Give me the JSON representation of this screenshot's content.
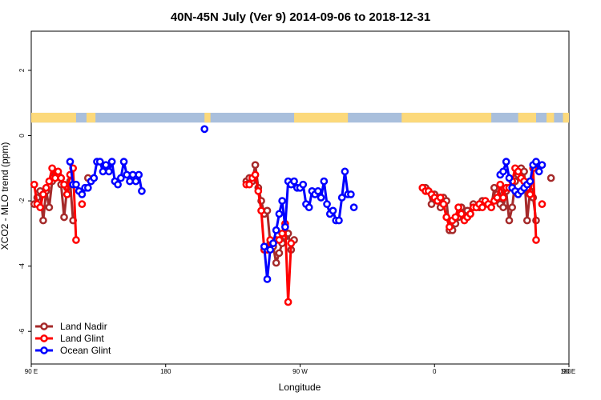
{
  "chart_data": {
    "type": "line",
    "title": "40N-45N July (Ver 9)   2014-09-06 to 2018-12-31",
    "xlabel": "Longitude",
    "ylabel": "XCO2 - MLO trend (ppm)",
    "xlim": [
      90,
      450
    ],
    "ylim": [
      -7,
      3.2
    ],
    "x_ticks": [
      {
        "value": 90,
        "label": "90 E"
      },
      {
        "value": 180,
        "label": "180"
      },
      {
        "value": 270,
        "label": "90 W"
      },
      {
        "value": 360,
        "label": "0"
      },
      {
        "value": 450,
        "label": "90 E"
      }
    ],
    "x_ticks_right": {
      "value": 450,
      "label": "180"
    },
    "y_ticks": [
      {
        "value": 2,
        "label": "2"
      },
      {
        "value": 0,
        "label": "0"
      },
      {
        "value": -2,
        "label": "-2"
      },
      {
        "value": -4,
        "label": "-4"
      },
      {
        "value": -6,
        "label": "-6"
      }
    ],
    "grid": false,
    "legend_position": "bottom-left",
    "land_ocean_strip": {
      "y_range": [
        0.4,
        0.7
      ],
      "land_color": "#fcd97b",
      "ocean_color": "#a9bfdc",
      "land_intervals_lon": [
        [
          90,
          120
        ],
        [
          127,
          133
        ],
        [
          206,
          210
        ],
        [
          266,
          302
        ],
        [
          338,
          398
        ],
        [
          416,
          428
        ],
        [
          435,
          440
        ],
        [
          446,
          450
        ]
      ]
    },
    "series": [
      {
        "name": "Land Nadir",
        "color": "#a52a2a",
        "points": [
          [
            92,
            -2.1
          ],
          [
            94,
            -1.9
          ],
          [
            96,
            -1.7
          ],
          [
            98,
            -2.6
          ],
          [
            100,
            -1.7
          ],
          [
            102,
            -2.2
          ],
          [
            104,
            -1.4
          ],
          [
            106,
            -1.2
          ],
          [
            108,
            -1.2
          ],
          [
            110,
            -1.5
          ],
          [
            112,
            -2.5
          ],
          [
            114,
            -1.6
          ],
          [
            116,
            -1.4
          ],
          [
            118,
            -2.6
          ],
          [
            null,
            null
          ],
          [
            128,
            -1.3
          ],
          [
            null,
            null
          ],
          [
            234,
            -1.4
          ],
          [
            236,
            -1.3
          ],
          [
            238,
            -1.4
          ],
          [
            240,
            -0.9
          ],
          [
            242,
            -1.6
          ],
          [
            244,
            -2.0
          ],
          [
            246,
            -2.4
          ],
          [
            248,
            -2.3
          ],
          [
            250,
            -3.3
          ],
          [
            252,
            -3.4
          ],
          [
            254,
            -3.9
          ],
          [
            256,
            -3.6
          ],
          [
            258,
            -3.3
          ],
          [
            260,
            -3.1
          ],
          [
            262,
            -3.0
          ],
          [
            264,
            -3.5
          ],
          [
            266,
            -3.2
          ],
          [
            null,
            null
          ],
          [
            352,
            -1.6
          ],
          [
            354,
            -1.6
          ],
          [
            356,
            -1.7
          ],
          [
            358,
            -2.1
          ],
          [
            360,
            -1.8
          ],
          [
            362,
            -1.9
          ],
          [
            364,
            -2.2
          ],
          [
            366,
            -1.9
          ],
          [
            368,
            -2.0
          ],
          [
            370,
            -2.9
          ],
          [
            372,
            -2.9
          ],
          [
            374,
            -2.7
          ],
          [
            376,
            -2.5
          ],
          [
            378,
            -2.2
          ],
          [
            380,
            -2.4
          ],
          [
            382,
            -2.3
          ],
          [
            384,
            -2.4
          ],
          [
            386,
            -2.1
          ],
          [
            388,
            -2.2
          ],
          [
            390,
            -2.2
          ],
          [
            392,
            -2.0
          ],
          [
            394,
            -2.1
          ],
          [
            396,
            -2.1
          ],
          [
            398,
            -2.2
          ],
          [
            400,
            -1.6
          ],
          [
            402,
            -1.8
          ],
          [
            404,
            -2.1
          ],
          [
            406,
            -2.2
          ],
          [
            408,
            -1.7
          ],
          [
            410,
            -2.6
          ],
          [
            412,
            -2.2
          ],
          [
            414,
            -1.4
          ],
          [
            416,
            -1.2
          ],
          [
            418,
            -1.0
          ],
          [
            420,
            -1.1
          ],
          [
            422,
            -2.6
          ],
          [
            424,
            -1.7
          ],
          [
            426,
            -1.9
          ],
          [
            428,
            -2.6
          ],
          [
            null,
            null
          ],
          [
            438,
            -1.3
          ]
        ]
      },
      {
        "name": "Land Glint",
        "color": "#ff0000",
        "points": [
          [
            92,
            -1.5
          ],
          [
            94,
            -2.1
          ],
          [
            96,
            -2.2
          ],
          [
            98,
            -1.8
          ],
          [
            100,
            -1.6
          ],
          [
            102,
            -1.4
          ],
          [
            104,
            -1.0
          ],
          [
            106,
            -1.3
          ],
          [
            108,
            -1.1
          ],
          [
            110,
            -1.3
          ],
          [
            112,
            -1.5
          ],
          [
            114,
            -1.8
          ],
          [
            116,
            -1.2
          ],
          [
            118,
            -1.0
          ],
          [
            120,
            -3.2
          ],
          [
            null,
            null
          ],
          [
            124,
            -2.1
          ],
          [
            null,
            null
          ],
          [
            234,
            -1.5
          ],
          [
            236,
            -1.5
          ],
          [
            238,
            -1.3
          ],
          [
            240,
            -1.2
          ],
          [
            242,
            -1.7
          ],
          [
            244,
            -2.3
          ],
          [
            246,
            -3.5
          ],
          [
            248,
            -3.5
          ],
          [
            250,
            -3.2
          ],
          [
            252,
            -3.3
          ],
          [
            254,
            -3.2
          ],
          [
            256,
            -3.2
          ],
          [
            258,
            -3.0
          ],
          [
            260,
            -2.7
          ],
          [
            262,
            -5.1
          ],
          [
            264,
            -3.3
          ],
          [
            null,
            null
          ],
          [
            352,
            -1.6
          ],
          [
            354,
            -1.7
          ],
          [
            356,
            -1.7
          ],
          [
            358,
            -1.8
          ],
          [
            360,
            -1.9
          ],
          [
            362,
            -2.0
          ],
          [
            364,
            -1.9
          ],
          [
            366,
            -2.1
          ],
          [
            368,
            -2.5
          ],
          [
            370,
            -2.8
          ],
          [
            372,
            -2.6
          ],
          [
            374,
            -2.5
          ],
          [
            376,
            -2.2
          ],
          [
            378,
            -2.4
          ],
          [
            380,
            -2.6
          ],
          [
            382,
            -2.5
          ],
          [
            384,
            -2.4
          ],
          [
            386,
            -2.2
          ],
          [
            388,
            -2.2
          ],
          [
            390,
            -2.1
          ],
          [
            392,
            -2.2
          ],
          [
            394,
            -2.0
          ],
          [
            396,
            -2.1
          ],
          [
            398,
            -2.2
          ],
          [
            400,
            -2.0
          ],
          [
            402,
            -1.9
          ],
          [
            404,
            -1.5
          ],
          [
            406,
            -1.9
          ],
          [
            408,
            -1.6
          ],
          [
            410,
            -1.6
          ],
          [
            412,
            -1.4
          ],
          [
            414,
            -1.0
          ],
          [
            416,
            -1.1
          ],
          [
            418,
            -1.3
          ],
          [
            420,
            -1.4
          ],
          [
            422,
            -1.6
          ],
          [
            424,
            -1.8
          ],
          [
            426,
            -1.0
          ],
          [
            428,
            -3.2
          ],
          [
            null,
            null
          ],
          [
            432,
            -2.1
          ]
        ]
      },
      {
        "name": "Ocean Glint",
        "color": "#0000ff",
        "points": [
          [
            116,
            -0.8
          ],
          [
            118,
            -1.5
          ],
          [
            120,
            -1.5
          ],
          [
            122,
            -1.7
          ],
          [
            124,
            -1.8
          ],
          [
            126,
            -1.6
          ],
          [
            128,
            -1.6
          ],
          [
            130,
            -1.4
          ],
          [
            132,
            -1.3
          ],
          [
            134,
            -0.8
          ],
          [
            136,
            -0.8
          ],
          [
            138,
            -1.1
          ],
          [
            140,
            -0.9
          ],
          [
            142,
            -1.1
          ],
          [
            144,
            -0.8
          ],
          [
            146,
            -1.4
          ],
          [
            148,
            -1.5
          ],
          [
            150,
            -1.3
          ],
          [
            152,
            -0.8
          ],
          [
            154,
            -1.2
          ],
          [
            156,
            -1.4
          ],
          [
            158,
            -1.2
          ],
          [
            160,
            -1.4
          ],
          [
            162,
            -1.2
          ],
          [
            164,
            -1.7
          ],
          [
            null,
            null
          ],
          [
            206,
            0.2
          ],
          [
            null,
            null
          ],
          [
            246,
            -3.4
          ],
          [
            248,
            -4.4
          ],
          [
            250,
            -3.5
          ],
          [
            252,
            -3.3
          ],
          [
            254,
            -2.9
          ],
          [
            256,
            -2.4
          ],
          [
            258,
            -2.0
          ],
          [
            260,
            -2.8
          ],
          [
            262,
            -1.4
          ],
          [
            264,
            -1.5
          ],
          [
            266,
            -1.4
          ],
          [
            268,
            -1.6
          ],
          [
            270,
            -1.6
          ],
          [
            272,
            -1.5
          ],
          [
            274,
            -2.1
          ],
          [
            276,
            -2.2
          ],
          [
            278,
            -1.7
          ],
          [
            280,
            -1.8
          ],
          [
            282,
            -1.7
          ],
          [
            284,
            -1.9
          ],
          [
            286,
            -1.4
          ],
          [
            288,
            -2.1
          ],
          [
            290,
            -2.4
          ],
          [
            292,
            -2.3
          ],
          [
            294,
            -2.6
          ],
          [
            296,
            -2.6
          ],
          [
            298,
            -1.9
          ],
          [
            300,
            -1.1
          ],
          [
            302,
            -1.8
          ],
          [
            304,
            -1.8
          ],
          [
            null,
            null
          ],
          [
            306,
            -2.2
          ],
          [
            null,
            null
          ],
          [
            404,
            -1.2
          ],
          [
            406,
            -1.1
          ],
          [
            408,
            -0.8
          ],
          [
            410,
            -1.3
          ],
          [
            412,
            -1.6
          ],
          [
            414,
            -1.7
          ],
          [
            416,
            -1.8
          ],
          [
            418,
            -1.7
          ],
          [
            420,
            -1.6
          ],
          [
            422,
            -1.5
          ],
          [
            424,
            -1.4
          ],
          [
            426,
            -0.9
          ],
          [
            428,
            -0.8
          ],
          [
            430,
            -1.1
          ],
          [
            432,
            -0.9
          ]
        ]
      }
    ]
  }
}
